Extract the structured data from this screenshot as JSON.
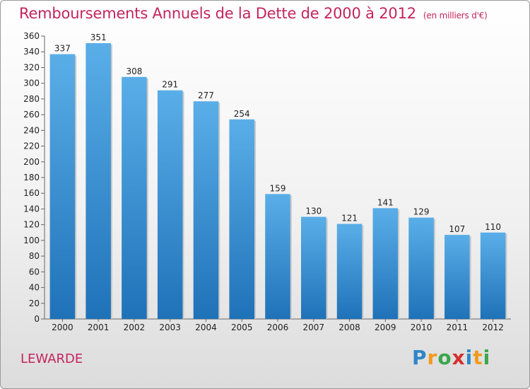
{
  "title": "Remboursements Annuels de la Dette de 2000 à 2012",
  "unit": "(en milliers d'€)",
  "commune": "LEWARDE",
  "logo": {
    "letters": [
      "P",
      "r",
      "o",
      "x",
      "i",
      "t",
      "i"
    ],
    "colors": [
      "#2f86c8",
      "#f29a1f",
      "#3aa64a",
      "#d52f2f",
      "#2f86c8",
      "#f29a1f",
      "#3aa64a"
    ]
  },
  "colors": {
    "title": "#c4245c",
    "bar_top": "#5aaee8",
    "bar_bottom": "#1f72b8"
  },
  "chart_data": {
    "type": "bar",
    "title": "Remboursements Annuels de la Dette de 2000 à 2012",
    "categories": [
      "2000",
      "2001",
      "2002",
      "2003",
      "2004",
      "2005",
      "2006",
      "2007",
      "2008",
      "2009",
      "2010",
      "2011",
      "2012"
    ],
    "values": [
      337,
      351,
      308,
      291,
      277,
      254,
      159,
      130,
      121,
      141,
      129,
      107,
      110
    ],
    "ylim": [
      0,
      360
    ],
    "yticks": [
      0,
      20,
      40,
      60,
      80,
      100,
      120,
      140,
      160,
      180,
      200,
      220,
      240,
      260,
      280,
      300,
      320,
      340,
      360
    ],
    "grid": false,
    "xlabel": "",
    "ylabel": ""
  }
}
